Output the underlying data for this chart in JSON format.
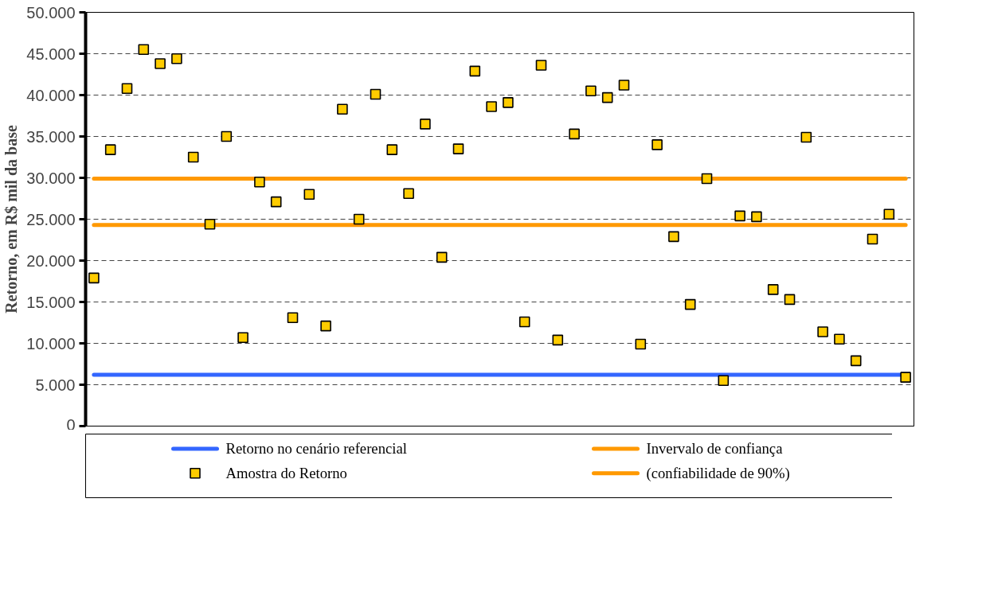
{
  "chart_data": {
    "type": "scatter",
    "ylabel": "Retorno, em R$ mil da base",
    "categories": [
      null,
      null,
      null,
      null,
      null,
      null,
      null,
      null,
      null,
      null,
      null,
      null,
      null,
      null,
      null,
      null,
      null,
      null,
      null,
      null,
      null,
      null,
      null,
      null,
      null,
      null,
      null,
      null,
      null,
      null,
      null,
      null,
      null,
      null,
      null,
      null,
      null,
      null,
      null,
      null,
      null,
      null,
      null,
      null,
      null,
      null,
      null,
      null,
      null,
      null
    ],
    "series": [
      {
        "name": "Amostra do Retorno",
        "color": "#ffcc00",
        "values": [
          17900,
          33400,
          40800,
          45500,
          43800,
          44400,
          32500,
          24400,
          35000,
          10700,
          29500,
          27100,
          13100,
          28000,
          12100,
          38300,
          25000,
          40100,
          33400,
          28100,
          36500,
          20400,
          33500,
          42900,
          38600,
          39100,
          12600,
          43600,
          10400,
          35300,
          40500,
          39700,
          41200,
          9900,
          34000,
          22900,
          14700,
          29900,
          5500,
          25400,
          25300,
          16500,
          15300,
          34900,
          11400,
          10500,
          7900,
          22600,
          25600,
          5900
        ]
      }
    ],
    "ref_lines": [
      {
        "axis": "y",
        "value": 6200,
        "label": "Retorno no cenário referencial",
        "color": "#3366ff"
      },
      {
        "axis": "y",
        "value": 29900,
        "label": "Invervalo de confiança",
        "color": "#ff9900"
      },
      {
        "axis": "y",
        "value": 24300,
        "label": "(confiabilidade de 90%)",
        "color": "#ff9900"
      }
    ],
    "ylim": [
      0,
      50000
    ],
    "yticks": [
      {
        "value": 0,
        "label": "0"
      },
      {
        "value": 5000,
        "label": "5.000"
      },
      {
        "value": 10000,
        "label": "10.000"
      },
      {
        "value": 15000,
        "label": "15.000"
      },
      {
        "value": 20000,
        "label": "20.000"
      },
      {
        "value": 25000,
        "label": "25.000"
      },
      {
        "value": 30000,
        "label": "30.000"
      },
      {
        "value": 35000,
        "label": "35.000"
      },
      {
        "value": 40000,
        "label": "40.000"
      },
      {
        "value": 45000,
        "label": "45.000"
      },
      {
        "value": 50000,
        "label": "50.000"
      }
    ],
    "grid": "y",
    "legend": "bottom",
    "marker": "square",
    "tick_labels": "y"
  }
}
